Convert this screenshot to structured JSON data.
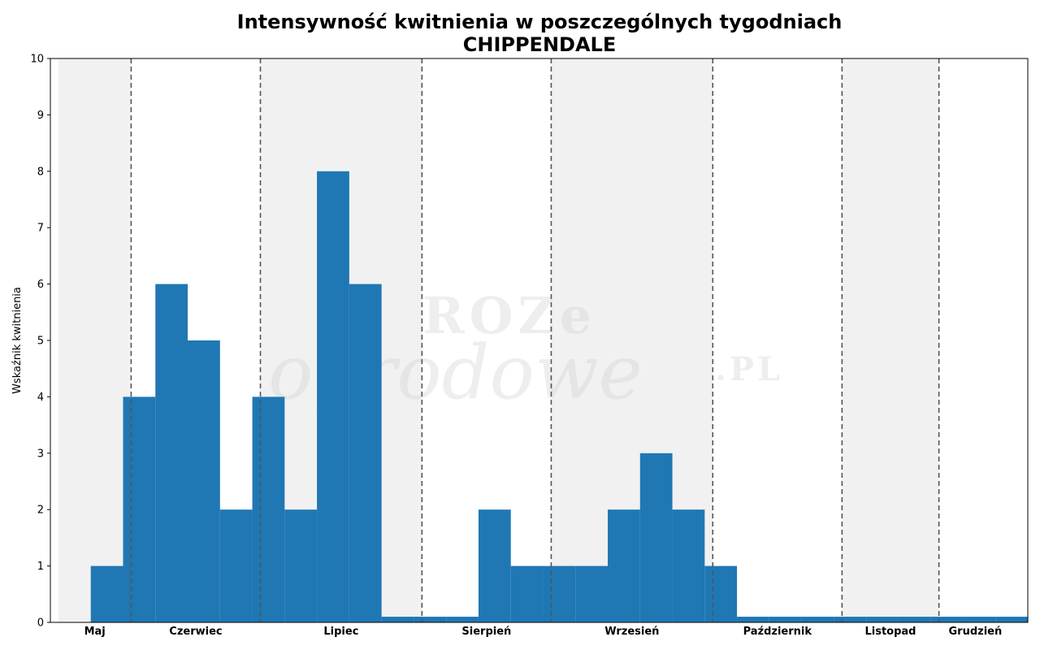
{
  "chart_data": {
    "type": "bar",
    "title": "Intensywność kwitnienia w poszczególnych tygodniach",
    "subtitle": "CHIPPENDALE",
    "ylabel": "Wskaźnik kwitnienia",
    "xlabel": "",
    "ylim": [
      0,
      10
    ],
    "yticks": [
      0,
      1,
      2,
      3,
      4,
      5,
      6,
      7,
      8,
      9,
      10
    ],
    "grid": false,
    "legend": "none",
    "bar_color": "#1f77b4",
    "band_color": "#f1f1f1",
    "divider_color": "#555555",
    "months": [
      "Maj",
      "Czerwiec",
      "Lipiec",
      "Sierpień",
      "Wrzesień",
      "Październik",
      "Listopad",
      "Grudzień"
    ],
    "month_start_weeks": [
      0,
      2.25,
      6.25,
      11.25,
      15.25,
      20.25,
      24.25,
      27.25
    ],
    "month_end_week": 29.5,
    "week_values": [
      0,
      1,
      4,
      6,
      5,
      2,
      4,
      2,
      8,
      6,
      0.1,
      0.1,
      0.1,
      2,
      1,
      1,
      1,
      2,
      3,
      2,
      1,
      0.1,
      0.1,
      0.1,
      0.1,
      0.1,
      0.1,
      0.1,
      0.1,
      0.1
    ]
  },
  "watermark": {
    "line1": "ROZe",
    "line2": "ogrodowe",
    "suffix": ".PL"
  }
}
